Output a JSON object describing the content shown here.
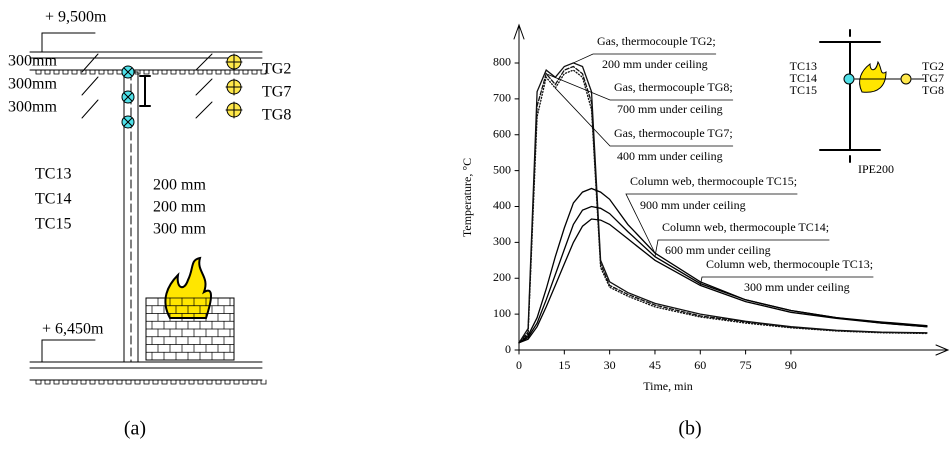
{
  "diagram": {
    "elevation_top": "+ 9,500m",
    "elevation_bottom": "+ 6,450m",
    "spacing_left": [
      "300mm",
      "300mm",
      "300mm"
    ],
    "column_labels": [
      "TC13",
      "TC14",
      "TC15"
    ],
    "gas_labels": [
      "TG2",
      "TG7",
      "TG8"
    ],
    "spacing_right": [
      "200 mm",
      "200 mm",
      "300 mm"
    ],
    "caption": "(a)"
  },
  "chart_data": {
    "type": "line",
    "ylabel": "Temperature, °C",
    "xlabel": "Time, min",
    "xlim": [
      0,
      140
    ],
    "ylim": [
      0,
      850
    ],
    "xticks": [
      0,
      15,
      30,
      45,
      60,
      75,
      90
    ],
    "yticks": [
      0,
      100,
      200,
      300,
      400,
      500,
      600,
      700,
      800
    ],
    "x": [
      0,
      3,
      6,
      9,
      12,
      15,
      18,
      21,
      24,
      27,
      30,
      36,
      45,
      60,
      75,
      90,
      105,
      120,
      135
    ],
    "series": [
      {
        "name": "Gas, thermocouple TG2;",
        "note": "200 mm under ceiling",
        "color": "#111",
        "dash": "none",
        "values": [
          20,
          60,
          720,
          780,
          760,
          790,
          800,
          790,
          720,
          250,
          190,
          160,
          130,
          100,
          80,
          65,
          55,
          50,
          48
        ]
      },
      {
        "name": "Gas, thermocouple TG8;",
        "note": "700 mm under ceiling",
        "color": "#111",
        "dash": "4 2",
        "values": [
          20,
          50,
          680,
          770,
          740,
          780,
          790,
          770,
          690,
          240,
          180,
          155,
          125,
          95,
          78,
          63,
          54,
          49,
          47
        ]
      },
      {
        "name": "Gas, thermocouple TG7;",
        "note": "400 mm under ceiling",
        "color": "#111",
        "dash": "1 2",
        "values": [
          20,
          45,
          650,
          760,
          730,
          770,
          780,
          760,
          670,
          230,
          175,
          150,
          120,
          92,
          75,
          62,
          53,
          48,
          46
        ]
      },
      {
        "name": "Column web, thermocouple TC15;",
        "note": "900 mm under ceiling",
        "color": "#000",
        "dash": "none",
        "values": [
          20,
          40,
          90,
          170,
          260,
          340,
          410,
          440,
          450,
          440,
          420,
          350,
          270,
          190,
          140,
          110,
          90,
          75,
          65
        ]
      },
      {
        "name": "Column web, thermocouple TC14;",
        "note": "600 mm under ceiling",
        "color": "#000",
        "dash": "none",
        "values": [
          20,
          35,
          75,
          140,
          210,
          280,
          350,
          390,
          400,
          395,
          380,
          330,
          260,
          185,
          140,
          110,
          90,
          78,
          68
        ]
      },
      {
        "name": "Column web, thermocouple TC13;",
        "note": "300 mm under ceiling",
        "color": "#000",
        "dash": "none",
        "values": [
          20,
          30,
          65,
          120,
          180,
          240,
          300,
          345,
          365,
          362,
          350,
          310,
          250,
          180,
          135,
          105,
          88,
          75,
          65
        ]
      }
    ],
    "inset": {
      "left": [
        "TC13",
        "TC14",
        "TC15"
      ],
      "right": [
        "TG2",
        "TG7",
        "TG8"
      ],
      "section": "IPE200"
    },
    "caption": "(b)"
  }
}
